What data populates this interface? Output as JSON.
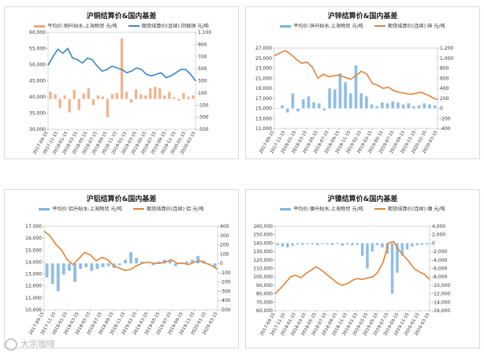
{
  "watermark": "大宗咖啡",
  "chart_data": [
    {
      "type": "line+bar",
      "title": "沪铜结算价&国内基差",
      "legend": [
        {
          "name": "平均价:铜升贴水:上海物贸 元/吨",
          "kind": "bar",
          "color": "#f0a57a"
        },
        {
          "name": "期货结算价(连续):阴极铜 元/吨",
          "kind": "line",
          "color": "#3a86c4"
        }
      ],
      "x_ticks": [
        "2017-09-15",
        "2017-11-15",
        "2018-01-15",
        "2018-03-15",
        "2018-05-15",
        "2018-07-15",
        "2018-09-15",
        "2018-11-15",
        "2019-01-15",
        "2019-03-15",
        "2019-05-15",
        "2019-07-15",
        "2019-09-15",
        "2019-11-15",
        "2020-01-15",
        "2020-03-15"
      ],
      "y_left": {
        "min": 30000,
        "max": 60000,
        "ticks": [
          "30,000",
          "35,000",
          "40,000",
          "45,000",
          "50,000",
          "55,000",
          "60,000"
        ]
      },
      "y_right": {
        "min": -500,
        "max": 1100,
        "ticks": [
          "-500",
          "-300",
          "-100",
          "100",
          "300",
          "500",
          "700",
          "900",
          "1,100"
        ]
      },
      "line_series": {
        "name": "期货结算价(连续):阴极铜 元/吨",
        "color": "#3a86c4",
        "axis": "left",
        "values": [
          49800,
          52500,
          54800,
          53500,
          55000,
          52000,
          51500,
          50500,
          52000,
          51500,
          49500,
          48000,
          48500,
          49500,
          49000,
          48500,
          47500,
          48000,
          49000,
          48500,
          47000,
          46500,
          47000,
          47500,
          46000,
          46500,
          47500,
          48500,
          48500,
          47000,
          45000
        ]
      },
      "bar_series": {
        "name": "平均价:铜升贴水:上海物贸 元/吨",
        "color": "#f0a57a",
        "axis": "right",
        "values": [
          120,
          80,
          -150,
          60,
          -220,
          150,
          -180,
          90,
          180,
          -100,
          60,
          40,
          -300,
          80,
          100,
          1000,
          120,
          -60,
          160,
          80,
          60,
          180,
          200,
          180,
          60,
          120,
          30,
          -30,
          100,
          40,
          60
        ]
      }
    },
    {
      "type": "line+bar",
      "title": "沪锌结算价&国内基差",
      "legend": [
        {
          "name": "平均价:锌升贴水:上海物贸 元/吨",
          "kind": "bar",
          "color": "#7eb3df"
        },
        {
          "name": "期货结算价(连续):锌 元/吨",
          "kind": "line",
          "color": "#e0843a"
        }
      ],
      "x_ticks": [
        "2017-09-15",
        "2017-11-15",
        "2018-01-15",
        "2018-03-15",
        "2018-05-15",
        "2018-07-15",
        "2018-09-15",
        "2018-11-15",
        "2019-01-15",
        "2019-03-15",
        "2019-05-15",
        "2019-07-15",
        "2019-09-15",
        "2019-11-15",
        "2020-01-15",
        "2020-03-15"
      ],
      "y_left": {
        "min": 11000,
        "max": 27000,
        "ticks": [
          "11,000",
          "13,000",
          "15,000",
          "17,000",
          "19,000",
          "21,000",
          "23,000",
          "25,000",
          "27,000"
        ]
      },
      "y_right": {
        "min": -400,
        "max": 1200,
        "ticks": [
          "-400",
          "-200",
          "0",
          "200",
          "400",
          "600",
          "800",
          "1,000",
          "1,200"
        ]
      },
      "line_series": {
        "name": "期货结算价(连续):锌 元/吨",
        "color": "#e0843a",
        "axis": "left",
        "values": [
          25500,
          26000,
          26500,
          25800,
          24800,
          24000,
          24200,
          23200,
          21000,
          21800,
          21300,
          21500,
          21600,
          21200,
          20800,
          21500,
          22400,
          21800,
          20000,
          19600,
          19000,
          19200,
          18500,
          18200,
          18000,
          17800,
          18000,
          18200,
          17800,
          17200,
          16700
        ]
      },
      "bar_series": {
        "name": "平均价:锌升贴水:上海物贸 元/吨",
        "color": "#7eb3df",
        "axis": "right",
        "values": [
          0,
          60,
          -80,
          300,
          -60,
          180,
          240,
          120,
          100,
          -40,
          400,
          380,
          700,
          520,
          300,
          860,
          300,
          240,
          80,
          40,
          120,
          100,
          140,
          120,
          80,
          100,
          40,
          60,
          100,
          80,
          60
        ]
      }
    },
    {
      "type": "line+bar",
      "title": "沪铝结算价&国内基差",
      "legend": [
        {
          "name": "平均价:铝升贴水:上海物贸 元/吨",
          "kind": "bar",
          "color": "#7eb3df"
        },
        {
          "name": "期货结算价(连续):铝 元/吨",
          "kind": "line",
          "color": "#e0843a"
        }
      ],
      "x_ticks": [
        "2017-09-15",
        "2017-11-15",
        "2018-01-15",
        "2018-03-15",
        "2018-05-15",
        "2018-07-15",
        "2018-09-15",
        "2018-11-15",
        "2019-01-15",
        "2019-03-15",
        "2019-05-15",
        "2019-07-15",
        "2019-09-15",
        "2019-11-15",
        "2020-01-15",
        "2020-03-15"
      ],
      "y_left": {
        "min": 10000,
        "max": 17000,
        "ticks": [
          "10,000",
          "11,000",
          "12,000",
          "13,000",
          "14,000",
          "15,000",
          "16,000",
          "17,000"
        ]
      },
      "y_right": {
        "min": -500,
        "max": 400,
        "ticks": [
          "-500",
          "-400",
          "-300",
          "-200",
          "-100",
          "0",
          "100",
          "200",
          "300",
          "400"
        ]
      },
      "line_series": {
        "name": "期货结算价(连续):铝 元/吨",
        "color": "#e0843a",
        "axis": "left",
        "values": [
          16600,
          16200,
          15500,
          15000,
          14200,
          13800,
          14300,
          14800,
          14600,
          14100,
          14400,
          14200,
          13700,
          13500,
          13300,
          13400,
          13700,
          13900,
          14000,
          13900,
          13900,
          14000,
          14200,
          13900,
          13900,
          13800,
          14000,
          14100,
          13900,
          13700,
          13400
        ]
      },
      "bar_series": {
        "name": "平均价:铝升贴水:上海物贸 元/吨",
        "color": "#7eb3df",
        "axis": "right",
        "values": [
          -150,
          -220,
          -300,
          -120,
          -80,
          -200,
          -60,
          -40,
          -80,
          -60,
          -40,
          -30,
          -50,
          -20,
          40,
          120,
          60,
          20,
          0,
          -20,
          20,
          40,
          30,
          -30,
          10,
          20,
          40,
          80,
          30,
          0,
          -40
        ]
      }
    },
    {
      "type": "line+bar",
      "title": "沪镍结算价&国内基差",
      "legend": [
        {
          "name": "平均价:镍升贴水:上海物贸 元/吨",
          "kind": "bar",
          "color": "#7eb3df"
        },
        {
          "name": "期货结算价(连续):镍 元/吨",
          "kind": "line",
          "color": "#e0843a"
        }
      ],
      "x_ticks": [
        "2017-09-15",
        "2017-11-15",
        "2018-01-15",
        "2018-03-15",
        "2018-05-15",
        "2018-07-15",
        "2018-09-15",
        "2018-11-15",
        "2019-01-15",
        "2019-03-15",
        "2019-05-15",
        "2019-07-15",
        "2019-09-15",
        "2019-11-15",
        "2020-01-15",
        "2020-03-15"
      ],
      "y_left": {
        "min": 60000,
        "max": 160000,
        "ticks": [
          "60,000",
          "70,000",
          "80,000",
          "90,000",
          "100,000",
          "110,000",
          "120,000",
          "130,000",
          "140,000",
          "150,000",
          "160,000"
        ]
      },
      "y_right": {
        "min": -16000,
        "max": 4000,
        "ticks": [
          "-16,000",
          "-14,000",
          "-12,000",
          "-10,000",
          "-8,000",
          "-6,000",
          "-4,000",
          "-2,000",
          "0",
          "2,000",
          "4,000"
        ]
      },
      "line_series": {
        "name": "期货结算价(连续):镍 元/吨",
        "color": "#e0843a",
        "axis": "left",
        "values": [
          80000,
          86000,
          93000,
          100000,
          102000,
          99000,
          104000,
          108000,
          112000,
          108000,
          103000,
          98000,
          93000,
          90000,
          92000,
          96000,
          98000,
          97000,
          99000,
          100000,
          106000,
          118000,
          140000,
          142000,
          132000,
          125000,
          118000,
          110000,
          106000,
          103000,
          97000
        ]
      },
      "bar_series": {
        "name": "平均价:镍升贴水:上海物贸 元/吨",
        "color": "#7eb3df",
        "axis": "right",
        "values": [
          -500,
          -800,
          -1000,
          -600,
          -300,
          -400,
          -200,
          -300,
          -500,
          -200,
          -300,
          -400,
          -200,
          -600,
          -300,
          -500,
          -400,
          -3000,
          -6000,
          -2000,
          -500,
          -1000,
          -2500,
          -12000,
          -7000,
          -3000,
          -1500,
          -800,
          -500,
          -400,
          -300
        ]
      }
    }
  ]
}
